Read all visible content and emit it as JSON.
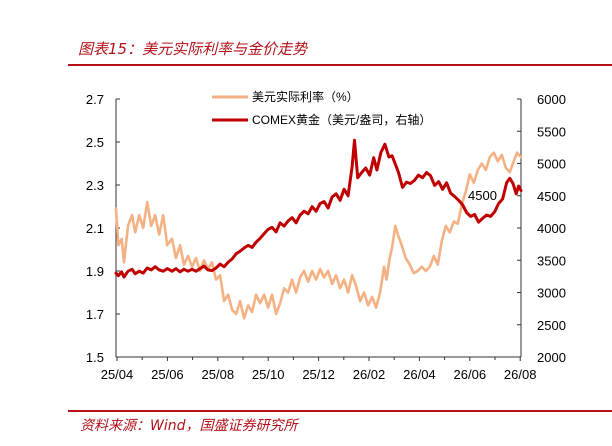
{
  "figure": {
    "title": "图表15：美元实际利率与金价走势",
    "source": "资料来源：Wind，国盛证券研究所"
  },
  "colors": {
    "accent": "#b3121a",
    "real_rate": "#f4b183",
    "gold": "#c00000"
  },
  "chart_data": {
    "type": "line",
    "title": "",
    "xlabel": "",
    "ylabel": "",
    "x_ticks": [
      "25/04",
      "25/06",
      "25/08",
      "25/10",
      "25/12",
      "26/02",
      "26/04",
      "26/06",
      "26/08"
    ],
    "x_range": [
      "2025-04-01",
      "2026-08-20"
    ],
    "y_left": {
      "min": 1.5,
      "max": 2.7,
      "ticks": [
        "2.7",
        "2.5",
        "2.3",
        "2.1",
        "1.9",
        "1.7",
        "1.5"
      ]
    },
    "y_right": {
      "min": 2000,
      "max": 6000,
      "ticks": [
        "6000",
        "5500",
        "5000",
        "4500",
        "4000",
        "3500",
        "3000",
        "2500",
        "2000"
      ]
    },
    "legend_position": "top-center",
    "grid": false,
    "annotation": "4500",
    "series": [
      {
        "name": "美元实际利率（%）",
        "axis": "left",
        "color": "#f4b183",
        "points": [
          [
            "2025-04-01",
            2.19
          ],
          [
            "2025-04-04",
            2.02
          ],
          [
            "2025-04-08",
            2.05
          ],
          [
            "2025-04-11",
            1.94
          ],
          [
            "2025-04-16",
            2.11
          ],
          [
            "2025-04-21",
            2.16
          ],
          [
            "2025-04-25",
            2.08
          ],
          [
            "2025-04-30",
            2.16
          ],
          [
            "2025-05-05",
            2.1
          ],
          [
            "2025-05-10",
            2.22
          ],
          [
            "2025-05-15",
            2.11
          ],
          [
            "2025-05-20",
            2.16
          ],
          [
            "2025-05-25",
            2.07
          ],
          [
            "2025-05-30",
            2.16
          ],
          [
            "2025-06-04",
            2.02
          ],
          [
            "2025-06-10",
            2.05
          ],
          [
            "2025-06-15",
            1.96
          ],
          [
            "2025-06-20",
            2.02
          ],
          [
            "2025-06-25",
            1.93
          ],
          [
            "2025-06-30",
            1.97
          ],
          [
            "2025-07-05",
            1.92
          ],
          [
            "2025-07-10",
            1.96
          ],
          [
            "2025-07-15",
            1.9
          ],
          [
            "2025-07-20",
            1.95
          ],
          [
            "2025-07-25",
            1.91
          ],
          [
            "2025-07-30",
            1.94
          ],
          [
            "2025-08-04",
            1.86
          ],
          [
            "2025-08-09",
            1.88
          ],
          [
            "2025-08-14",
            1.76
          ],
          [
            "2025-08-19",
            1.79
          ],
          [
            "2025-08-24",
            1.72
          ],
          [
            "2025-08-29",
            1.7
          ],
          [
            "2025-09-03",
            1.76
          ],
          [
            "2025-09-08",
            1.68
          ],
          [
            "2025-09-13",
            1.74
          ],
          [
            "2025-09-18",
            1.71
          ],
          [
            "2025-09-23",
            1.79
          ],
          [
            "2025-09-28",
            1.75
          ],
          [
            "2025-10-03",
            1.79
          ],
          [
            "2025-10-08",
            1.73
          ],
          [
            "2025-10-13",
            1.79
          ],
          [
            "2025-10-18",
            1.7
          ],
          [
            "2025-10-23",
            1.75
          ],
          [
            "2025-10-28",
            1.82
          ],
          [
            "2025-11-02",
            1.8
          ],
          [
            "2025-11-07",
            1.86
          ],
          [
            "2025-11-12",
            1.8
          ],
          [
            "2025-11-17",
            1.87
          ],
          [
            "2025-11-22",
            1.9
          ],
          [
            "2025-11-27",
            1.85
          ],
          [
            "2025-12-02",
            1.9
          ],
          [
            "2025-12-07",
            1.86
          ],
          [
            "2025-12-12",
            1.91
          ],
          [
            "2025-12-17",
            1.87
          ],
          [
            "2025-12-22",
            1.9
          ],
          [
            "2025-12-27",
            1.84
          ],
          [
            "2026-01-01",
            1.88
          ],
          [
            "2026-01-06",
            1.82
          ],
          [
            "2026-01-11",
            1.86
          ],
          [
            "2026-01-16",
            1.8
          ],
          [
            "2026-01-21",
            1.88
          ],
          [
            "2026-01-26",
            1.83
          ],
          [
            "2026-01-31",
            1.76
          ],
          [
            "2026-02-05",
            1.8
          ],
          [
            "2026-02-10",
            1.74
          ],
          [
            "2026-02-15",
            1.78
          ],
          [
            "2026-02-20",
            1.73
          ],
          [
            "2026-02-25",
            1.8
          ],
          [
            "2026-03-02",
            1.92
          ],
          [
            "2026-03-05",
            1.86
          ],
          [
            "2026-03-09",
            1.96
          ],
          [
            "2026-03-12",
            2.01
          ],
          [
            "2026-03-16",
            2.11
          ],
          [
            "2026-03-20",
            2.06
          ],
          [
            "2026-03-24",
            2.02
          ],
          [
            "2026-03-29",
            1.96
          ],
          [
            "2026-04-03",
            1.93
          ],
          [
            "2026-04-08",
            1.89
          ],
          [
            "2026-04-13",
            1.9
          ],
          [
            "2026-04-18",
            1.92
          ],
          [
            "2026-04-23",
            1.9
          ],
          [
            "2026-04-28",
            1.92
          ],
          [
            "2026-05-03",
            1.97
          ],
          [
            "2026-05-08",
            1.93
          ],
          [
            "2026-05-13",
            2.04
          ],
          [
            "2026-05-18",
            2.11
          ],
          [
            "2026-05-23",
            2.08
          ],
          [
            "2026-05-28",
            2.13
          ],
          [
            "2026-06-02",
            2.12
          ],
          [
            "2026-06-07",
            2.21
          ],
          [
            "2026-06-12",
            2.27
          ],
          [
            "2026-06-17",
            2.35
          ],
          [
            "2026-06-22",
            2.31
          ],
          [
            "2026-06-27",
            2.37
          ],
          [
            "2026-07-02",
            2.4
          ],
          [
            "2026-07-07",
            2.37
          ],
          [
            "2026-07-12",
            2.43
          ],
          [
            "2026-07-17",
            2.45
          ],
          [
            "2026-07-22",
            2.41
          ],
          [
            "2026-07-27",
            2.44
          ],
          [
            "2026-08-01",
            2.38
          ],
          [
            "2026-08-06",
            2.36
          ],
          [
            "2026-08-11",
            2.41
          ],
          [
            "2026-08-15",
            2.45
          ],
          [
            "2026-08-20",
            2.43
          ]
        ]
      },
      {
        "name": "COMEX黄金（美元/盎司，右轴）",
        "axis": "right",
        "color": "#c00000",
        "points": [
          [
            "2025-04-01",
            3300
          ],
          [
            "2025-04-04",
            3260
          ],
          [
            "2025-04-08",
            3320
          ],
          [
            "2025-04-11",
            3240
          ],
          [
            "2025-04-16",
            3330
          ],
          [
            "2025-04-21",
            3360
          ],
          [
            "2025-04-25",
            3290
          ],
          [
            "2025-04-30",
            3330
          ],
          [
            "2025-05-05",
            3300
          ],
          [
            "2025-05-10",
            3380
          ],
          [
            "2025-05-15",
            3350
          ],
          [
            "2025-05-20",
            3400
          ],
          [
            "2025-05-25",
            3350
          ],
          [
            "2025-05-30",
            3330
          ],
          [
            "2025-06-04",
            3370
          ],
          [
            "2025-06-10",
            3330
          ],
          [
            "2025-06-15",
            3370
          ],
          [
            "2025-06-20",
            3320
          ],
          [
            "2025-06-25",
            3360
          ],
          [
            "2025-06-30",
            3330
          ],
          [
            "2025-07-05",
            3360
          ],
          [
            "2025-07-10",
            3330
          ],
          [
            "2025-07-15",
            3370
          ],
          [
            "2025-07-20",
            3410
          ],
          [
            "2025-07-25",
            3350
          ],
          [
            "2025-07-30",
            3340
          ],
          [
            "2025-08-04",
            3380
          ],
          [
            "2025-08-09",
            3440
          ],
          [
            "2025-08-14",
            3400
          ],
          [
            "2025-08-19",
            3470
          ],
          [
            "2025-08-24",
            3520
          ],
          [
            "2025-08-29",
            3600
          ],
          [
            "2025-09-03",
            3640
          ],
          [
            "2025-09-08",
            3690
          ],
          [
            "2025-09-13",
            3730
          ],
          [
            "2025-09-18",
            3700
          ],
          [
            "2025-09-23",
            3780
          ],
          [
            "2025-09-28",
            3840
          ],
          [
            "2025-10-03",
            3910
          ],
          [
            "2025-10-08",
            3980
          ],
          [
            "2025-10-13",
            4010
          ],
          [
            "2025-10-18",
            3940
          ],
          [
            "2025-10-23",
            4080
          ],
          [
            "2025-10-28",
            4030
          ],
          [
            "2025-11-02",
            4110
          ],
          [
            "2025-11-07",
            4160
          ],
          [
            "2025-11-12",
            4080
          ],
          [
            "2025-11-17",
            4200
          ],
          [
            "2025-11-22",
            4260
          ],
          [
            "2025-11-27",
            4220
          ],
          [
            "2025-12-02",
            4330
          ],
          [
            "2025-12-07",
            4260
          ],
          [
            "2025-12-12",
            4380
          ],
          [
            "2025-12-17",
            4410
          ],
          [
            "2025-12-22",
            4310
          ],
          [
            "2025-12-27",
            4480
          ],
          [
            "2026-01-01",
            4530
          ],
          [
            "2026-01-06",
            4430
          ],
          [
            "2026-01-11",
            4600
          ],
          [
            "2026-01-16",
            4500
          ],
          [
            "2026-01-21",
            4950
          ],
          [
            "2026-01-24",
            5360
          ],
          [
            "2026-01-28",
            4780
          ],
          [
            "2026-02-02",
            4860
          ],
          [
            "2026-02-07",
            4930
          ],
          [
            "2026-02-12",
            4820
          ],
          [
            "2026-02-17",
            5090
          ],
          [
            "2026-02-21",
            4900
          ],
          [
            "2026-02-26",
            5170
          ],
          [
            "2026-03-03",
            5300
          ],
          [
            "2026-03-08",
            5100
          ],
          [
            "2026-03-12",
            5120
          ],
          [
            "2026-03-16",
            4990
          ],
          [
            "2026-03-20",
            4860
          ],
          [
            "2026-03-25",
            4630
          ],
          [
            "2026-03-30",
            4710
          ],
          [
            "2026-04-04",
            4690
          ],
          [
            "2026-04-09",
            4740
          ],
          [
            "2026-04-14",
            4820
          ],
          [
            "2026-04-19",
            4780
          ],
          [
            "2026-04-24",
            4860
          ],
          [
            "2026-04-29",
            4810
          ],
          [
            "2026-05-04",
            4660
          ],
          [
            "2026-05-09",
            4720
          ],
          [
            "2026-05-14",
            4600
          ],
          [
            "2026-05-19",
            4700
          ],
          [
            "2026-05-24",
            4540
          ],
          [
            "2026-05-29",
            4490
          ],
          [
            "2026-06-03",
            4430
          ],
          [
            "2026-06-08",
            4360
          ],
          [
            "2026-06-13",
            4240
          ],
          [
            "2026-06-18",
            4180
          ],
          [
            "2026-06-23",
            4210
          ],
          [
            "2026-06-28",
            4090
          ],
          [
            "2026-07-03",
            4150
          ],
          [
            "2026-07-08",
            4200
          ],
          [
            "2026-07-13",
            4180
          ],
          [
            "2026-07-18",
            4250
          ],
          [
            "2026-07-23",
            4380
          ],
          [
            "2026-07-28",
            4450
          ],
          [
            "2026-08-02",
            4700
          ],
          [
            "2026-08-06",
            4770
          ],
          [
            "2026-08-10",
            4690
          ],
          [
            "2026-08-14",
            4530
          ],
          [
            "2026-08-17",
            4650
          ],
          [
            "2026-08-20",
            4580
          ]
        ]
      }
    ]
  }
}
